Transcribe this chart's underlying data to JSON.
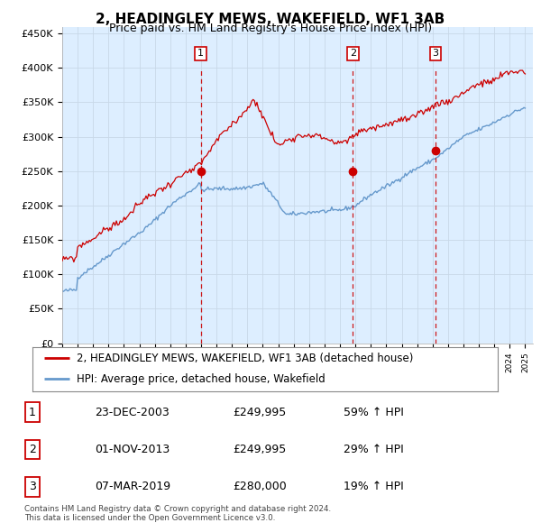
{
  "title": "2, HEADINGLEY MEWS, WAKEFIELD, WF1 3AB",
  "subtitle": "Price paid vs. HM Land Registry's House Price Index (HPI)",
  "ylim": [
    0,
    460000
  ],
  "yticks": [
    0,
    50000,
    100000,
    150000,
    200000,
    250000,
    300000,
    350000,
    400000,
    450000
  ],
  "ytick_labels": [
    "£0",
    "£50K",
    "£100K",
    "£150K",
    "£200K",
    "£250K",
    "£300K",
    "£350K",
    "£400K",
    "£450K"
  ],
  "hpi_color": "#6699cc",
  "price_color": "#cc0000",
  "grid_color": "#c8d8e8",
  "background_color": "#ddeeff",
  "sale1_date": 2003.97,
  "sale1_price": 249995,
  "sale1_label": "1",
  "sale2_date": 2013.83,
  "sale2_price": 249995,
  "sale2_label": "2",
  "sale3_date": 2019.18,
  "sale3_price": 280000,
  "sale3_label": "3",
  "legend_line1": "2, HEADINGLEY MEWS, WAKEFIELD, WF1 3AB (detached house)",
  "legend_line2": "HPI: Average price, detached house, Wakefield",
  "table_rows": [
    [
      "1",
      "23-DEC-2003",
      "£249,995",
      "59% ↑ HPI"
    ],
    [
      "2",
      "01-NOV-2013",
      "£249,995",
      "29% ↑ HPI"
    ],
    [
      "3",
      "07-MAR-2019",
      "£280,000",
      "19% ↑ HPI"
    ]
  ],
  "footnote": "Contains HM Land Registry data © Crown copyright and database right 2024.\nThis data is licensed under the Open Government Licence v3.0.",
  "title_fontsize": 11,
  "subtitle_fontsize": 9,
  "axis_fontsize": 8,
  "legend_fontsize": 8.5,
  "table_fontsize": 9
}
